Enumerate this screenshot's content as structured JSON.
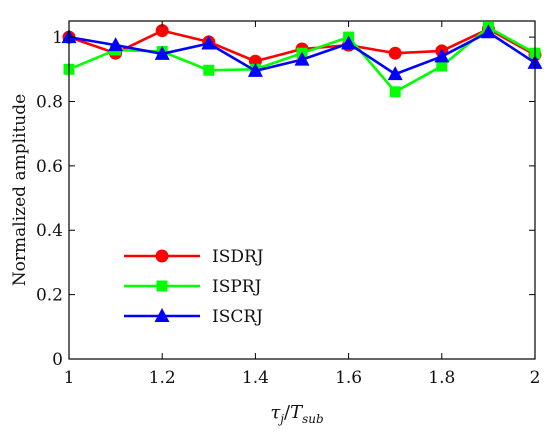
{
  "chart_data": {
    "type": "line",
    "xlabel": {
      "main": "τ",
      "main_sub": "j",
      "divider": "/",
      "den": "T",
      "den_sub": "sub"
    },
    "ylabel": "Normalized amplitude",
    "xlim": [
      1,
      2
    ],
    "ylim": [
      0,
      1.05
    ],
    "xticks": [
      1,
      1.2,
      1.4,
      1.6,
      1.8,
      2
    ],
    "xtick_labels": [
      "1",
      "1.2",
      "1.4",
      "1.6",
      "1.8",
      "2"
    ],
    "yticks": [
      0,
      0.2,
      0.4,
      0.6,
      0.8,
      1
    ],
    "ytick_labels": [
      "0",
      "0.2",
      "0.4",
      "0.6",
      "0.8",
      "1"
    ],
    "grid": false,
    "legend": {
      "placement": "lower-left"
    },
    "x": [
      1,
      1.1,
      1.2,
      1.3,
      1.4,
      1.5,
      1.6,
      1.7,
      1.8,
      1.9,
      2
    ],
    "series": [
      {
        "name": "ISDRJ",
        "color": "#ff0000",
        "marker": "circle",
        "values": [
          1.0,
          0.95,
          1.02,
          0.985,
          0.925,
          0.963,
          0.975,
          0.95,
          0.957,
          1.025,
          0.945
        ]
      },
      {
        "name": "ISPRJ",
        "color": "#00ff00",
        "marker": "square",
        "values": [
          0.9,
          0.96,
          0.955,
          0.897,
          0.9,
          0.95,
          1.0,
          0.83,
          0.91,
          1.03,
          0.95
        ]
      },
      {
        "name": "ISCRJ",
        "color": "#0000ff",
        "marker": "triangle",
        "values": [
          1.0,
          0.975,
          0.948,
          0.98,
          0.895,
          0.93,
          0.98,
          0.885,
          0.94,
          1.015,
          0.92
        ]
      }
    ]
  }
}
